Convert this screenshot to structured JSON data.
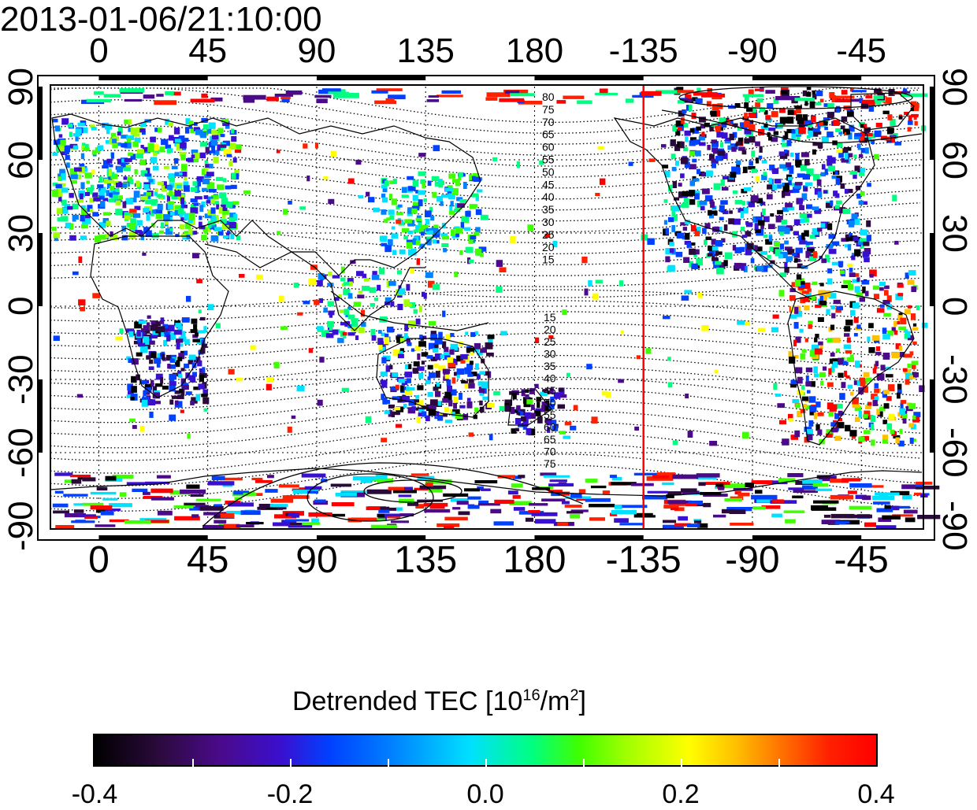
{
  "timestamp": "2013-01-06/21:10:00",
  "map": {
    "lon_ticks_top": [
      "0",
      "45",
      "90",
      "135",
      "180",
      "-135",
      "-90",
      "-45"
    ],
    "lon_ticks_bottom": [
      "0",
      "45",
      "90",
      "135",
      "180",
      "-135",
      "-90",
      "-45"
    ],
    "lat_ticks_left": [
      "90",
      "60",
      "30",
      "0",
      "-30",
      "-60",
      "-90"
    ],
    "lat_ticks_right": [
      "90",
      "60",
      "30",
      "0",
      "-30",
      "-60",
      "-90"
    ],
    "lon_range": [
      -20,
      340
    ],
    "lat_range": [
      -90,
      90
    ],
    "terminator_longitude": -135,
    "terminator_color": "#ff0000",
    "contour_labels_north": [
      "80",
      "75",
      "70",
      "65",
      "60",
      "55",
      "50",
      "45",
      "40",
      "35",
      "30",
      "25",
      "20",
      "15"
    ],
    "contour_labels_south": [
      "15",
      "20",
      "25",
      "30",
      "35",
      "40",
      "45",
      "50",
      "55",
      "60",
      "65",
      "70",
      "75"
    ]
  },
  "colorbar": {
    "title_main": "Detrended TEC  [10",
    "title_exp": "16",
    "title_unit": "/m",
    "title_unit_exp": "2",
    "title_close": "]",
    "min": -0.4,
    "max": 0.4,
    "tick_labels": [
      "-0.4",
      "-0.2",
      "0.0",
      "0.2",
      "0.4"
    ]
  }
}
